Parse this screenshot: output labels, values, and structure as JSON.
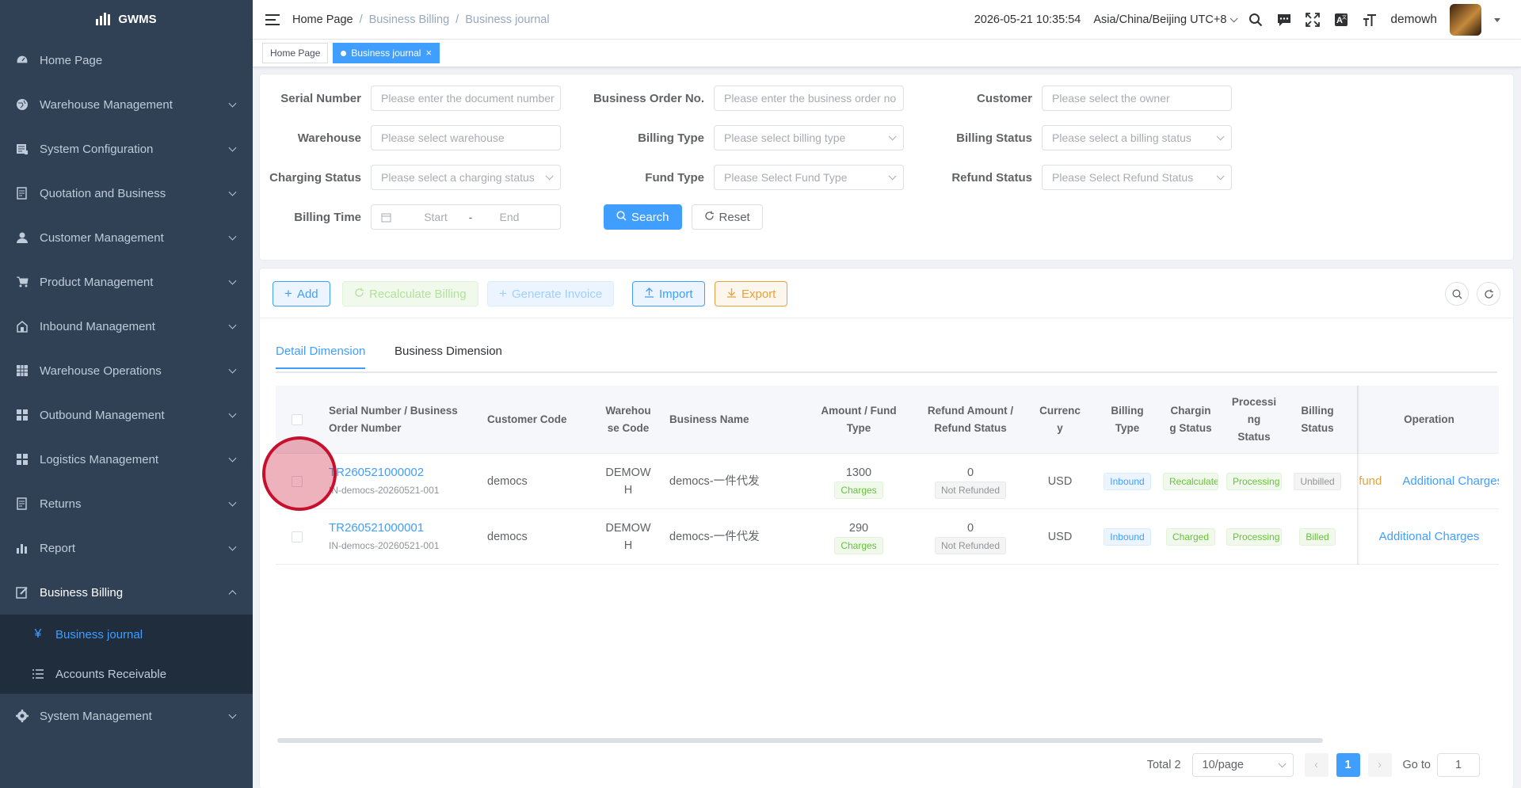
{
  "app": {
    "logo_text": "GWMS"
  },
  "sidebar": {
    "items": [
      {
        "label": "Home Page",
        "icon": "dashboard-icon"
      },
      {
        "label": "Warehouse Management",
        "icon": "globe-icon"
      },
      {
        "label": "System Configuration",
        "icon": "config-icon"
      },
      {
        "label": "Quotation and Business",
        "icon": "quotation-icon"
      },
      {
        "label": "Customer Management",
        "icon": "user-icon"
      },
      {
        "label": "Product Management",
        "icon": "cart-icon"
      },
      {
        "label": "Inbound Management",
        "icon": "inbound-icon"
      },
      {
        "label": "Warehouse Operations",
        "icon": "grid-icon"
      },
      {
        "label": "Outbound Management",
        "icon": "tiles-icon"
      },
      {
        "label": "Logistics Management",
        "icon": "tiles-icon"
      },
      {
        "label": "Returns",
        "icon": "returns-icon"
      },
      {
        "label": "Report",
        "icon": "bar-chart-icon"
      },
      {
        "label": "Business Billing",
        "icon": "edit-icon"
      }
    ],
    "billing_sub": [
      {
        "label": "Business journal",
        "icon": "yen-icon"
      },
      {
        "label": "Accounts Receivable",
        "icon": "list-icon"
      }
    ],
    "system": {
      "label": "System Management",
      "icon": "gear-icon"
    }
  },
  "header": {
    "breadcrumb": [
      "Home Page",
      "/",
      "Business Billing",
      "/",
      "Business journal"
    ],
    "datetime": "2026-05-21 10:35:54",
    "timezone": "Asia/China/Beijing UTC+8",
    "username": "demowh"
  },
  "tags": {
    "home": "Home Page",
    "current": "Business journal",
    "close": "×"
  },
  "filter": {
    "serial_label": "Serial Number",
    "serial_ph": "Please enter the document number",
    "order_label": "Business Order No.",
    "order_ph": "Please enter the business order no",
    "customer_label": "Customer",
    "customer_ph": "Please select the owner",
    "warehouse_label": "Warehouse",
    "warehouse_ph": "Please select warehouse",
    "billing_type_label": "Billing Type",
    "billing_type_ph": "Please select billing type",
    "billing_status_label": "Billing Status",
    "billing_status_ph": "Please select a billing status",
    "charging_label": "Charging Status",
    "charging_ph": "Please select a charging status",
    "fund_label": "Fund Type",
    "fund_ph": "Please Select Fund Type",
    "refund_label": "Refund Status",
    "refund_ph": "Please Select Refund Status",
    "time_label": "Billing Time",
    "start_ph": "Start",
    "sep": "-",
    "end_ph": "End",
    "search": "Search",
    "reset": "Reset"
  },
  "toolbar": {
    "add": "Add",
    "recalc": "Recalculate Billing",
    "generate": "Generate Invoice",
    "import": "Import",
    "export": "Export"
  },
  "tabs": {
    "detail": "Detail Dimension",
    "business": "Business Dimension"
  },
  "table": {
    "headers": {
      "serial_1": "Serial Number / Business",
      "serial_2": "Order Number",
      "customer": "Customer Code",
      "wh_1": "Warehou",
      "wh_2": "se Code",
      "bizname": "Business Name",
      "amount_1": "Amount / Fund",
      "amount_2": "Type",
      "refund_1": "Refund Amount /",
      "refund_2": "Refund Status",
      "cur_1": "Currenc",
      "cur_2": "y",
      "btype_1": "Billing",
      "btype_2": "Type",
      "charg_1": "Chargin",
      "charg_2": "g Status",
      "proc_1": "Processi",
      "proc_2": "ng",
      "proc_3": "Status",
      "bstat_1": "Billing",
      "bstat_2": "Status",
      "operation": "Operation"
    },
    "rows": [
      {
        "serial": "TR260521000002",
        "order": "IN-democs-20260521-001",
        "customer": "democs",
        "wh_1": "DEMOW",
        "wh_2": "H",
        "bizname": "democs-一件代发",
        "amount": "1300",
        "fund": "Charges",
        "refund_amount": "0",
        "refund_status": "Not Refunded",
        "currency": "USD",
        "billing_type": "Inbound",
        "charging": "Recalculate",
        "processing": "Processing",
        "billing_status": "Unbilled",
        "op_refund": "Refund",
        "op_charges": "Additional Charges"
      },
      {
        "serial": "TR260521000001",
        "order": "IN-democs-20260521-001",
        "customer": "democs",
        "wh_1": "DEMOW",
        "wh_2": "H",
        "bizname": "democs-一件代发",
        "amount": "290",
        "fund": "Charges",
        "refund_amount": "0",
        "refund_status": "Not Refunded",
        "currency": "USD",
        "billing_type": "Inbound",
        "charging": "Charged",
        "processing": "Processing",
        "billing_status": "Billed",
        "op_charges": "Additional Charges"
      }
    ]
  },
  "pagination": {
    "total": "Total 2",
    "size": "10/page",
    "page": "1",
    "goto_label": "Go to",
    "goto_value": "1"
  },
  "colors": {
    "sidebar": "#304156",
    "submenu": "#1f2d3d",
    "accent": "#409eff",
    "success": "#67c23a",
    "warning": "#e6a23c"
  }
}
